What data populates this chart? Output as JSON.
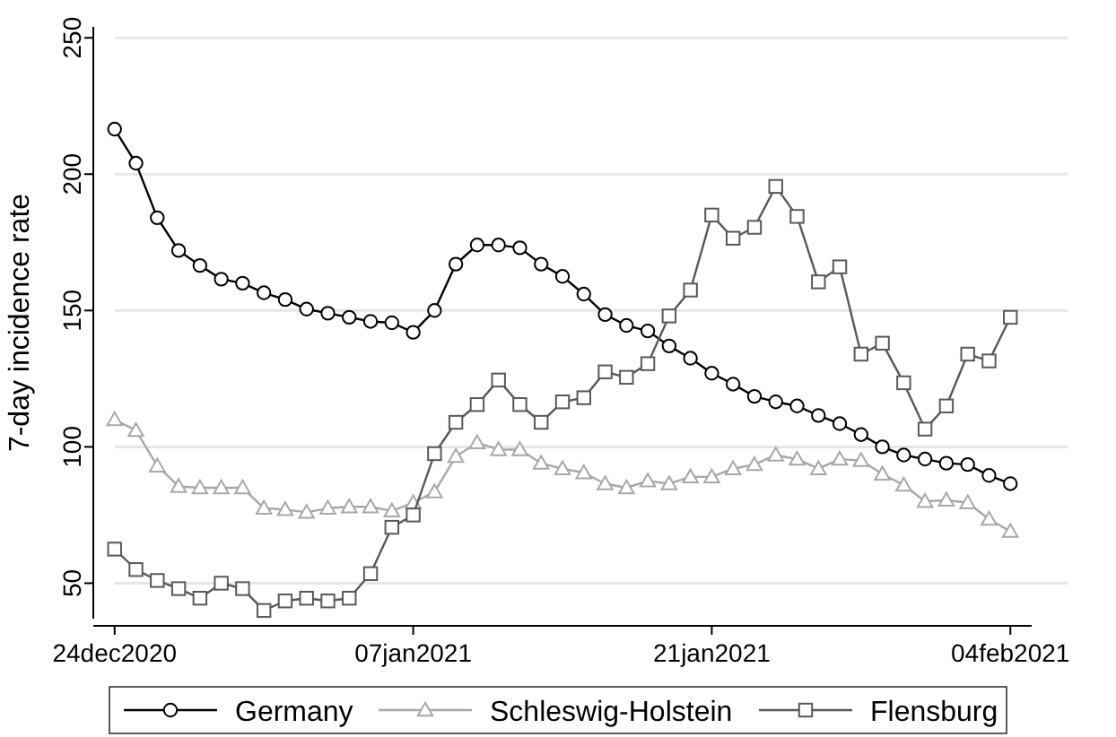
{
  "chart_data": {
    "type": "line",
    "ylabel": "7-day incidence rate",
    "x": [
      "2020-12-24",
      "2020-12-25",
      "2020-12-26",
      "2020-12-27",
      "2020-12-28",
      "2020-12-29",
      "2020-12-30",
      "2020-12-31",
      "2021-01-01",
      "2021-01-02",
      "2021-01-03",
      "2021-01-04",
      "2021-01-05",
      "2021-01-06",
      "2021-01-07",
      "2021-01-08",
      "2021-01-09",
      "2021-01-10",
      "2021-01-11",
      "2021-01-12",
      "2021-01-13",
      "2021-01-14",
      "2021-01-15",
      "2021-01-16",
      "2021-01-17",
      "2021-01-18",
      "2021-01-19",
      "2021-01-20",
      "2021-01-21",
      "2021-01-22",
      "2021-01-23",
      "2021-01-24",
      "2021-01-25",
      "2021-01-26",
      "2021-01-27",
      "2021-01-28",
      "2021-01-29",
      "2021-01-30",
      "2021-01-31",
      "2021-02-01",
      "2021-02-02",
      "2021-02-03",
      "2021-02-04"
    ],
    "series": [
      {
        "name": "Germany",
        "color": "#000000",
        "marker": "circle",
        "values": [
          216.5,
          204,
          184,
          172,
          166.5,
          161.5,
          160,
          156.5,
          154,
          150.5,
          149,
          147.5,
          146,
          145.5,
          142,
          150,
          167,
          174,
          174,
          173,
          167,
          162.5,
          156,
          148.5,
          144.5,
          142.5,
          137,
          132.5,
          127,
          123,
          118.5,
          116.5,
          115,
          111.5,
          108.5,
          104.5,
          100,
          97,
          95.5,
          94,
          93.5,
          89.5,
          86.5
        ]
      },
      {
        "name": "Schleswig-Holstein",
        "color": "#a8a8a8",
        "marker": "triangle",
        "values": [
          110,
          106,
          93,
          85.5,
          85,
          85,
          85,
          77.5,
          77,
          76,
          77.5,
          78,
          78,
          76.5,
          79.5,
          83.5,
          96.5,
          101.5,
          99,
          99,
          94,
          92,
          90.5,
          86.5,
          85,
          87.5,
          86.5,
          89,
          89,
          92,
          93.5,
          97,
          95.5,
          92,
          95.5,
          95,
          90,
          86,
          80,
          80.5,
          79.5,
          73.5,
          69
        ]
      },
      {
        "name": "Flensburg",
        "color": "#595959",
        "marker": "square",
        "values": [
          62.5,
          55,
          51,
          48,
          44.5,
          50,
          48,
          40,
          43.5,
          44.5,
          43.5,
          44.5,
          53.5,
          70.5,
          75,
          97.5,
          109,
          115.5,
          124.5,
          115.5,
          109,
          116.5,
          118,
          127.5,
          125.5,
          130.5,
          148,
          157.5,
          185,
          176.5,
          180.5,
          195.5,
          184.5,
          160.5,
          166,
          134,
          138,
          123.5,
          106.5,
          115,
          134,
          131.5,
          147.5
        ]
      }
    ],
    "xlim": [
      "2020-12-23",
      "2021-02-05"
    ],
    "xticks": [
      {
        "value": "2020-12-24",
        "label": "24dec2020"
      },
      {
        "value": "2021-01-07",
        "label": "07jan2021"
      },
      {
        "value": "2021-01-21",
        "label": "21jan2021"
      },
      {
        "value": "2021-02-04",
        "label": "04feb2021"
      }
    ],
    "ylim": [
      37,
      254
    ],
    "yticks": [
      50,
      100,
      150,
      200,
      250
    ],
    "grid": "y",
    "legend": "bottom",
    "line_style": "solid"
  }
}
